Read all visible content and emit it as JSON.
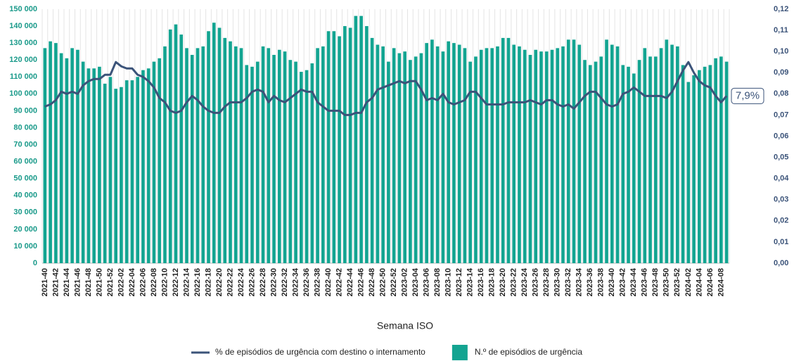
{
  "chart_data": {
    "type": "bar",
    "x_label": "Semana ISO",
    "annotation": "7,9%",
    "grid": "x",
    "legend": "bottom",
    "categories": [
      "2021-40",
      null,
      "2021-42",
      null,
      "2021-44",
      null,
      "2021-46",
      null,
      "2021-48",
      null,
      "2021-50",
      null,
      "2021-52",
      null,
      "2022-02",
      null,
      "2022-04",
      null,
      "2022-06",
      null,
      "2022-08",
      null,
      "2022-10",
      null,
      "2022-12",
      null,
      "2022-14",
      null,
      "2022-16",
      null,
      "2022-18",
      null,
      "2022-20",
      null,
      "2022-22",
      null,
      "2022-24",
      null,
      "2022-26",
      null,
      "2022-28",
      null,
      "2022-30",
      null,
      "2022-32",
      null,
      "2022-34",
      null,
      "2022-36",
      null,
      "2022-38",
      null,
      "2022-40",
      null,
      "2022-42",
      null,
      "2022-44",
      null,
      "2022-46",
      null,
      "2022-48",
      null,
      "2022-50",
      null,
      "2022-52",
      null,
      "2023-02",
      null,
      "2023-04",
      null,
      "2023-06",
      null,
      "2023-08",
      null,
      "2023-10",
      null,
      "2023-12",
      null,
      "2023-14",
      null,
      "2023-16",
      null,
      "2023-18",
      null,
      "2023-20",
      null,
      "2023-22",
      null,
      "2023-24",
      null,
      "2023-26",
      null,
      "2023-28",
      null,
      "2023-30",
      null,
      "2023-32",
      null,
      "2023-34",
      null,
      "2023-36",
      null,
      "2023-38",
      null,
      "2023-40",
      null,
      "2023-42",
      null,
      "2023-44",
      null,
      "2023-46",
      null,
      "2023-48",
      null,
      "2023-50",
      null,
      "2023-52",
      null,
      "2024-02",
      null,
      "2024-04",
      null,
      "2024-06",
      null,
      "2024-08",
      null
    ],
    "series": [
      {
        "name": "% de episódios de urgência com destino o internamento",
        "type": "line",
        "axis": "y2",
        "color": "#3b5379",
        "values": [
          0.074,
          0.075,
          0.077,
          0.081,
          0.08,
          0.081,
          0.08,
          0.084,
          0.086,
          0.087,
          0.087,
          0.089,
          0.089,
          0.095,
          0.093,
          0.092,
          0.092,
          0.089,
          0.088,
          0.086,
          0.083,
          0.078,
          0.076,
          0.072,
          0.071,
          0.072,
          0.076,
          0.079,
          0.077,
          0.074,
          0.072,
          0.071,
          0.071,
          0.074,
          0.076,
          0.076,
          0.076,
          0.078,
          0.081,
          0.082,
          0.081,
          0.076,
          0.079,
          0.077,
          0.076,
          0.078,
          0.08,
          0.082,
          0.081,
          0.081,
          0.076,
          0.074,
          0.072,
          0.072,
          0.072,
          0.07,
          0.07,
          0.071,
          0.071,
          0.076,
          0.078,
          0.082,
          0.083,
          0.084,
          0.085,
          0.086,
          0.085,
          0.086,
          0.086,
          0.082,
          0.077,
          0.078,
          0.077,
          0.08,
          0.076,
          0.075,
          0.076,
          0.077,
          0.081,
          0.081,
          0.078,
          0.075,
          0.075,
          0.075,
          0.075,
          0.076,
          0.076,
          0.076,
          0.076,
          0.077,
          0.076,
          0.075,
          0.077,
          0.077,
          0.075,
          0.074,
          0.075,
          0.073,
          0.076,
          0.079,
          0.081,
          0.081,
          0.078,
          0.075,
          0.074,
          0.075,
          0.08,
          0.081,
          0.083,
          0.081,
          0.079,
          0.079,
          0.079,
          0.079,
          0.078,
          0.081,
          0.086,
          0.091,
          0.095,
          0.09,
          0.086,
          0.084,
          0.083,
          0.079,
          0.076,
          0.079
        ]
      },
      {
        "name": "N.º de episódios de urgência",
        "type": "bar",
        "axis": "y",
        "color": "#13a491",
        "values": [
          127000,
          131000,
          130000,
          124000,
          121000,
          127000,
          126000,
          119000,
          115000,
          115000,
          116000,
          106000,
          110000,
          103000,
          104000,
          108000,
          108000,
          110000,
          114000,
          115000,
          119000,
          121000,
          128000,
          138000,
          141000,
          135000,
          127000,
          123000,
          127000,
          128000,
          137000,
          142000,
          139000,
          133000,
          131000,
          128000,
          127000,
          117000,
          116000,
          119000,
          128000,
          127000,
          123000,
          126000,
          125000,
          120000,
          119000,
          113000,
          114000,
          118000,
          127000,
          128000,
          137000,
          137000,
          134000,
          140000,
          139000,
          146000,
          146000,
          140000,
          133000,
          129000,
          128000,
          119000,
          127000,
          124000,
          125000,
          120000,
          122000,
          124000,
          130000,
          132000,
          128000,
          125000,
          131000,
          130000,
          129000,
          127000,
          119000,
          122000,
          126000,
          127000,
          127000,
          128000,
          133000,
          133000,
          129000,
          128000,
          126000,
          123000,
          126000,
          125000,
          125000,
          126000,
          127000,
          128000,
          132000,
          132000,
          129000,
          120000,
          117000,
          119000,
          122000,
          132000,
          129000,
          128000,
          117000,
          116000,
          112000,
          120000,
          127000,
          122000,
          122000,
          127000,
          132000,
          129000,
          128000,
          117000,
          107000,
          111000,
          114000,
          116000,
          117000,
          121000,
          122000,
          119000
        ]
      }
    ],
    "ylim": [
      0,
      150000
    ],
    "yticks": [
      0,
      {
        "value": 10000,
        "label": "10 000"
      },
      {
        "value": 20000,
        "label": "20 000"
      },
      {
        "value": 30000,
        "label": "30 000"
      },
      {
        "value": 40000,
        "label": "40 000"
      },
      {
        "value": 50000,
        "label": "50 000"
      },
      {
        "value": 60000,
        "label": "60 000"
      },
      {
        "value": 70000,
        "label": "70 000"
      },
      {
        "value": 80000,
        "label": "80 000"
      },
      {
        "value": 90000,
        "label": "90 000"
      },
      {
        "value": 100000,
        "label": "100 000"
      },
      {
        "value": 110000,
        "label": "110 000"
      },
      {
        "value": 120000,
        "label": "120 000"
      },
      {
        "value": 130000,
        "label": "130 000"
      },
      {
        "value": 140000,
        "label": "140 000"
      },
      {
        "value": 150000,
        "label": "150 000"
      }
    ],
    "y2lim": [
      0,
      0.12
    ],
    "y2ticks": [
      {
        "value": 0,
        "label": "0,00"
      },
      {
        "value": 0.01,
        "label": "0,01"
      },
      {
        "value": 0.02,
        "label": "0,02"
      },
      {
        "value": 0.03,
        "label": "0,03"
      },
      {
        "value": 0.04,
        "label": "0,04"
      },
      {
        "value": 0.05,
        "label": "0,05"
      },
      {
        "value": 0.06,
        "label": "0,06"
      },
      {
        "value": 0.07,
        "label": "0,07"
      },
      {
        "value": 0.08,
        "label": "0,08"
      },
      {
        "value": 0.09,
        "label": "0,09"
      },
      {
        "value": 0.1,
        "label": "0,10"
      },
      {
        "value": 0.11,
        "label": "0,11"
      },
      {
        "value": 0.12,
        "label": "0,12"
      }
    ]
  }
}
